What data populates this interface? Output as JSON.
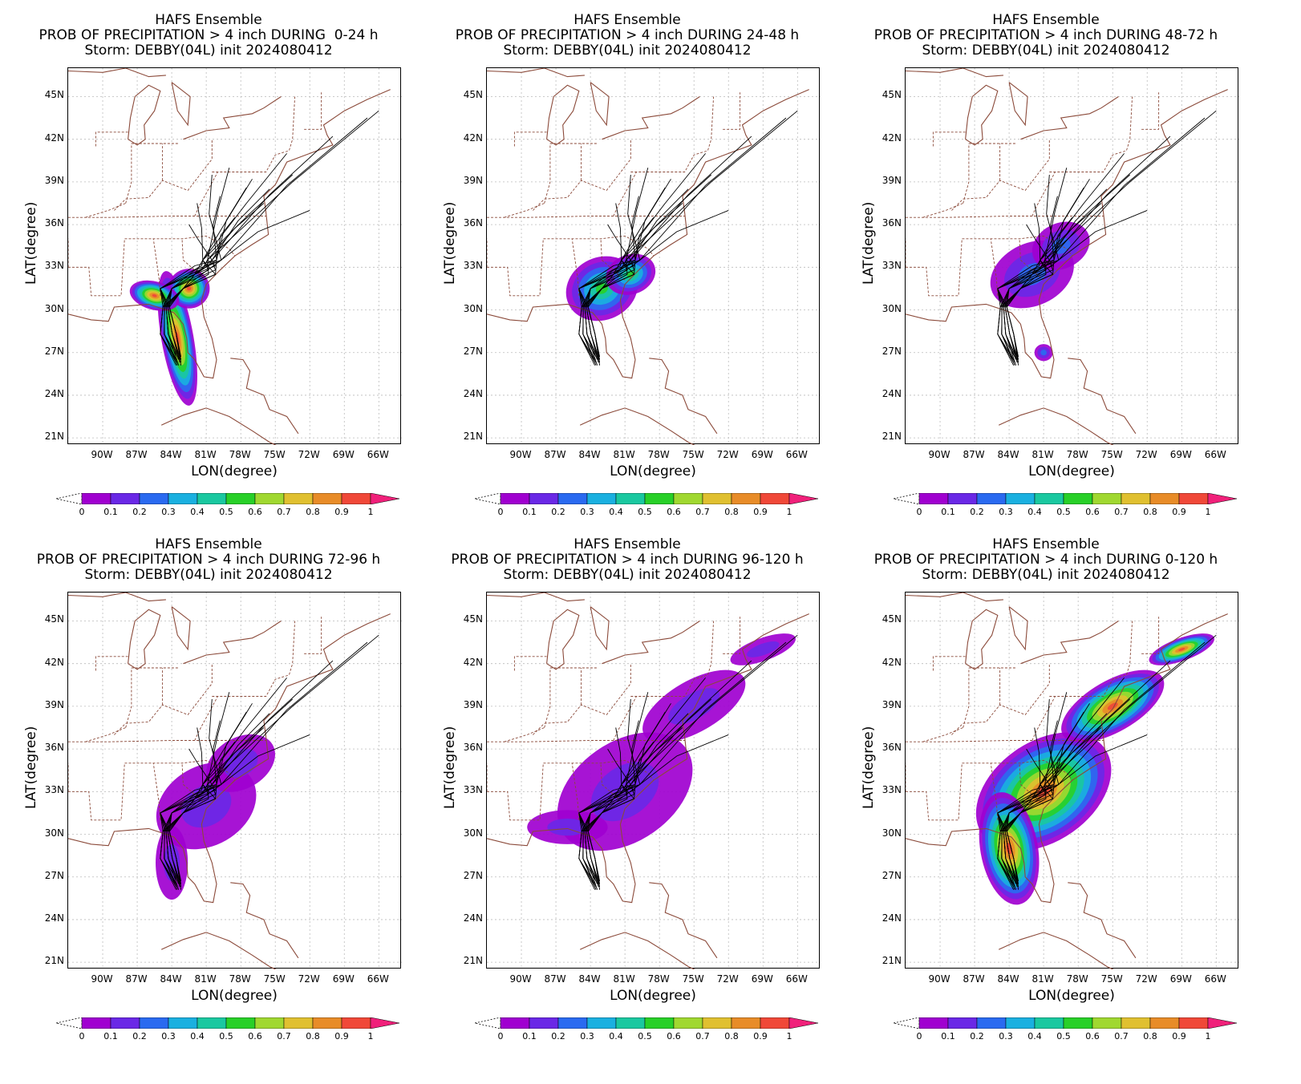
{
  "panels": [
    {
      "line1": "HAFS Ensemble",
      "line2": "PROB OF PRECIPITATION > 4 inch DURING  0-24 h",
      "line3": "Storm: DEBBY(04L) init 2024080412",
      "spread": 0.25,
      "peak": 0.95
    },
    {
      "line1": "HAFS Ensemble",
      "line2": "PROB OF PRECIPITATION > 4 inch DURING 24-48 h",
      "line3": "Storm: DEBBY(04L) init 2024080412",
      "spread": 0.4,
      "peak": 0.6
    },
    {
      "line1": "HAFS Ensemble",
      "line2": "PROB OF PRECIPITATION > 4 inch DURING 48-72 h",
      "line3": "Storm: DEBBY(04L) init 2024080412",
      "spread": 0.6,
      "peak": 0.3
    },
    {
      "line1": "HAFS Ensemble",
      "line2": "PROB OF PRECIPITATION > 4 inch DURING 72-96 h",
      "line3": "Storm: DEBBY(04L) init 2024080412",
      "spread": 0.75,
      "peak": 0.2
    },
    {
      "line1": "HAFS Ensemble",
      "line2": "PROB OF PRECIPITATION > 4 inch DURING 96-120 h",
      "line3": "Storm: DEBBY(04L) init 2024080412",
      "spread": 1.0,
      "peak": 0.15
    },
    {
      "line1": "HAFS Ensemble",
      "line2": "PROB OF PRECIPITATION > 4 inch DURING 0-120 h",
      "line3": "Storm: DEBBY(04L) init 2024080412",
      "spread": 1.0,
      "peak": 0.95
    }
  ],
  "axes": {
    "xlabel": "LON(degree)",
    "ylabel": "LAT(degree)",
    "xticks": [
      "90W",
      "87W",
      "84W",
      "81W",
      "78W",
      "75W",
      "72W",
      "69W",
      "66W"
    ],
    "yticks": [
      "45N",
      "42N",
      "39N",
      "36N",
      "33N",
      "30N",
      "27N",
      "24N",
      "21N"
    ],
    "xvals": [
      -90,
      -87,
      -84,
      -81,
      -78,
      -75,
      -72,
      -69,
      -66
    ],
    "yvals": [
      45,
      42,
      39,
      36,
      33,
      30,
      27,
      24,
      21
    ],
    "lon_range": [
      -93,
      -64
    ],
    "lat_range": [
      20.5,
      47
    ]
  },
  "colorbar": {
    "labels": [
      "0",
      "0.1",
      "0.2",
      "0.3",
      "0.4",
      "0.5",
      "0.6",
      "0.7",
      "0.8",
      "0.9",
      "1"
    ],
    "colors": [
      "#a000d0",
      "#6a28e6",
      "#2a6af0",
      "#1ab0e0",
      "#1ac8a0",
      "#28d028",
      "#a0d830",
      "#e0c030",
      "#e88c28",
      "#f04838",
      "#f0207a"
    ]
  },
  "chart_data": {
    "type": "heatmap",
    "variable": "PROB OF PRECIPITATION > 4 inch",
    "storm": "DEBBY(04L)",
    "init": "2024080412",
    "periods": [
      "0-24 h",
      "24-48 h",
      "48-72 h",
      "72-96 h",
      "96-120 h",
      "0-120 h"
    ],
    "xlabel": "LON(degree)",
    "ylabel": "LAT(degree)",
    "xlim": [
      -93,
      -64
    ],
    "ylim": [
      20.5,
      47
    ],
    "color_scale": [
      0,
      0.1,
      0.2,
      0.3,
      0.4,
      0.5,
      0.6,
      0.7,
      0.8,
      0.9,
      1
    ]
  }
}
